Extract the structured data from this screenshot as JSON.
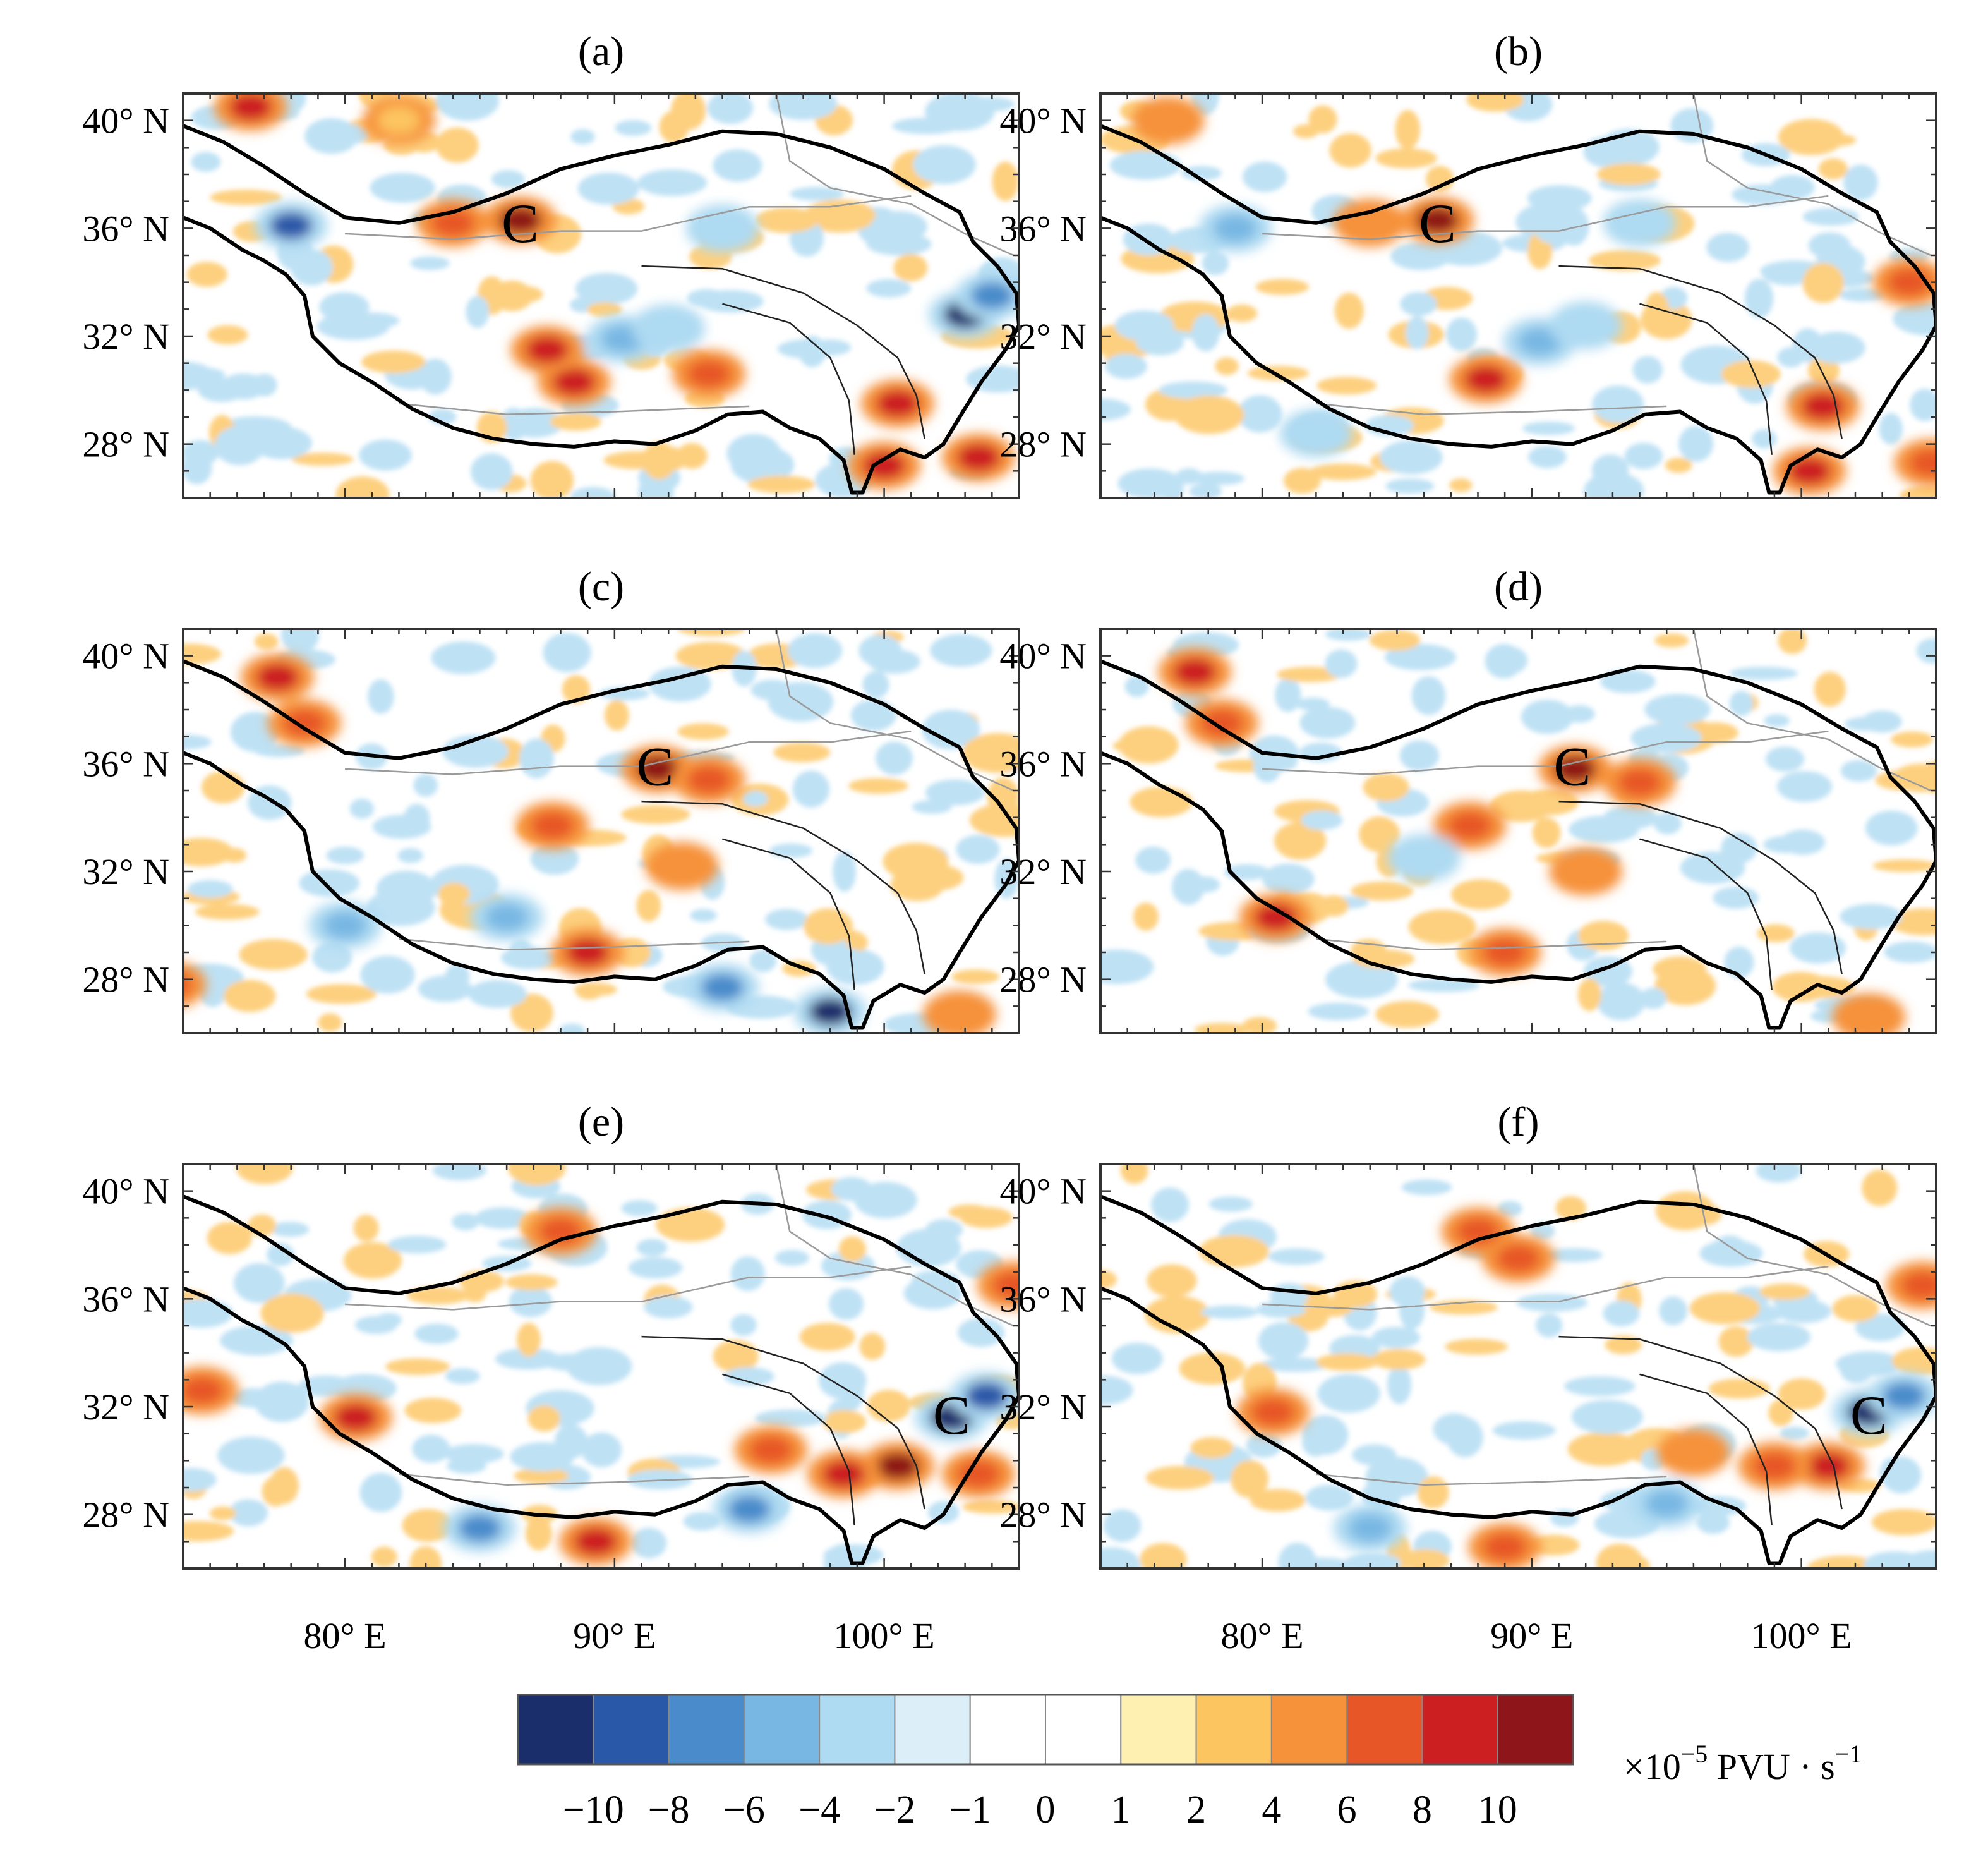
{
  "panels": [
    {
      "id": "a",
      "label": "(a)",
      "cyclone": {
        "lon": 86.5,
        "lat": 36.2
      },
      "spots": [
        [
          86.5,
          36.3,
          10
        ],
        [
          78,
          36.1,
          -9
        ],
        [
          84,
          36.2,
          6
        ],
        [
          90.3,
          31.9,
          -6
        ],
        [
          88.5,
          30.3,
          8
        ],
        [
          92,
          32.3,
          -4
        ],
        [
          100.5,
          29.5,
          8
        ],
        [
          100,
          27.2,
          9
        ],
        [
          103,
          32.8,
          -10
        ],
        [
          103.5,
          27.5,
          8
        ],
        [
          76.5,
          40.5,
          8
        ],
        [
          82,
          40,
          3
        ],
        [
          104,
          33.5,
          -8
        ],
        [
          94,
          36,
          -4
        ],
        [
          87.5,
          31.5,
          8
        ],
        [
          93.5,
          30.6,
          7
        ]
      ]
    },
    {
      "id": "b",
      "label": "(b)",
      "cyclone": {
        "lon": 86.5,
        "lat": 36.2
      },
      "spots": [
        [
          86.5,
          36.3,
          10
        ],
        [
          79,
          36,
          -5
        ],
        [
          84,
          36.2,
          5
        ],
        [
          88.3,
          30.4,
          8
        ],
        [
          90.3,
          31.8,
          -5
        ],
        [
          92,
          32.4,
          -4
        ],
        [
          100.8,
          29.4,
          8
        ],
        [
          100.3,
          27.0,
          8
        ],
        [
          104,
          34,
          6
        ],
        [
          104.8,
          27.3,
          7
        ],
        [
          76.5,
          40,
          5
        ],
        [
          94,
          36.2,
          -4
        ],
        [
          82,
          28.4,
          -4
        ]
      ]
    },
    {
      "id": "c",
      "label": "(c)",
      "cyclone": {
        "lon": 91.5,
        "lat": 35.9
      },
      "spots": [
        [
          91.6,
          35.8,
          10
        ],
        [
          93.5,
          35.4,
          7
        ],
        [
          77.5,
          39.2,
          9
        ],
        [
          78.5,
          37.5,
          6
        ],
        [
          87.7,
          33.7,
          7
        ],
        [
          89,
          29.0,
          8
        ],
        [
          98,
          26.8,
          -10
        ],
        [
          92.5,
          32.2,
          5
        ],
        [
          94,
          27.7,
          -8
        ],
        [
          80,
          30,
          -6
        ],
        [
          73.5,
          27.8,
          6
        ],
        [
          102.8,
          26.7,
          5
        ],
        [
          86,
          30.3,
          -6
        ]
      ]
    },
    {
      "id": "d",
      "label": "(d)",
      "cyclone": {
        "lon": 91.5,
        "lat": 35.9
      },
      "spots": [
        [
          91.6,
          35.8,
          10
        ],
        [
          94,
          35.3,
          7
        ],
        [
          77.5,
          39.4,
          9
        ],
        [
          78.5,
          37.5,
          6
        ],
        [
          87.7,
          33.7,
          6
        ],
        [
          89,
          29.0,
          6
        ],
        [
          80.5,
          30.3,
          8
        ],
        [
          92,
          32,
          5
        ],
        [
          102.5,
          26.6,
          5
        ],
        [
          86,
          32.5,
          -4
        ]
      ]
    },
    {
      "id": "e",
      "label": "(e)",
      "cyclone": {
        "lon": 102.5,
        "lat": 31.7
      },
      "spots": [
        [
          102.5,
          31.6,
          -10
        ],
        [
          103.8,
          32.4,
          -9
        ],
        [
          100.5,
          29.8,
          10
        ],
        [
          98.5,
          29.5,
          8
        ],
        [
          95.8,
          30.4,
          7
        ],
        [
          88,
          38.5,
          6
        ],
        [
          80.4,
          31.6,
          8
        ],
        [
          89.3,
          27.0,
          8
        ],
        [
          85,
          27.5,
          -8
        ],
        [
          95,
          28.2,
          -8
        ],
        [
          103.5,
          29.5,
          7
        ],
        [
          104.8,
          36.5,
          6
        ],
        [
          74.7,
          32.6,
          6
        ]
      ]
    },
    {
      "id": "f",
      "label": "(f)",
      "cyclone": {
        "lon": 102.5,
        "lat": 31.7
      },
      "spots": [
        [
          102.5,
          31.8,
          -10
        ],
        [
          103.8,
          32.4,
          -8
        ],
        [
          101,
          29.8,
          9
        ],
        [
          99,
          29.8,
          6
        ],
        [
          96,
          30.3,
          5
        ],
        [
          88,
          38.5,
          6
        ],
        [
          80.4,
          31.8,
          6
        ],
        [
          89,
          26.8,
          7
        ],
        [
          84,
          27.5,
          -6
        ],
        [
          95,
          28.4,
          -6
        ],
        [
          104.5,
          36.5,
          6
        ],
        [
          89.5,
          37.5,
          6
        ]
      ]
    }
  ],
  "axes": {
    "lon_range": [
      74,
      105
    ],
    "lat_range": [
      26,
      41
    ],
    "lat_ticks": [
      40,
      36,
      32,
      28
    ],
    "lat_labels": [
      "40° N",
      "36° N",
      "32° N",
      "28° N"
    ],
    "lon_ticks": [
      80,
      90,
      100
    ],
    "lon_labels": [
      "80° E",
      "90° E",
      "100° E"
    ]
  },
  "colorbar": {
    "labels": [
      "−10",
      "−8",
      "−6",
      "−4",
      "−2",
      "−1",
      "0",
      "1",
      "2",
      "4",
      "6",
      "8",
      "10"
    ],
    "levels": [
      -10,
      -8,
      -6,
      -4,
      -2,
      -1,
      0,
      1,
      2,
      4,
      6,
      8,
      10
    ],
    "colors": [
      "#1a2e6b",
      "#2a58a8",
      "#4a8bcb",
      "#78b7e3",
      "#aedaf2",
      "#dceff8",
      "#ffffff",
      "#ffffff",
      "#fdf0b0",
      "#fdc560",
      "#f6923a",
      "#e75627",
      "#cc1f21",
      "#8e1519"
    ],
    "unit_prefix": "×10",
    "unit_exp": "−5",
    "unit_main": " PVU · s",
    "unit_exp2": "−1"
  },
  "cyclone_symbol": "C"
}
